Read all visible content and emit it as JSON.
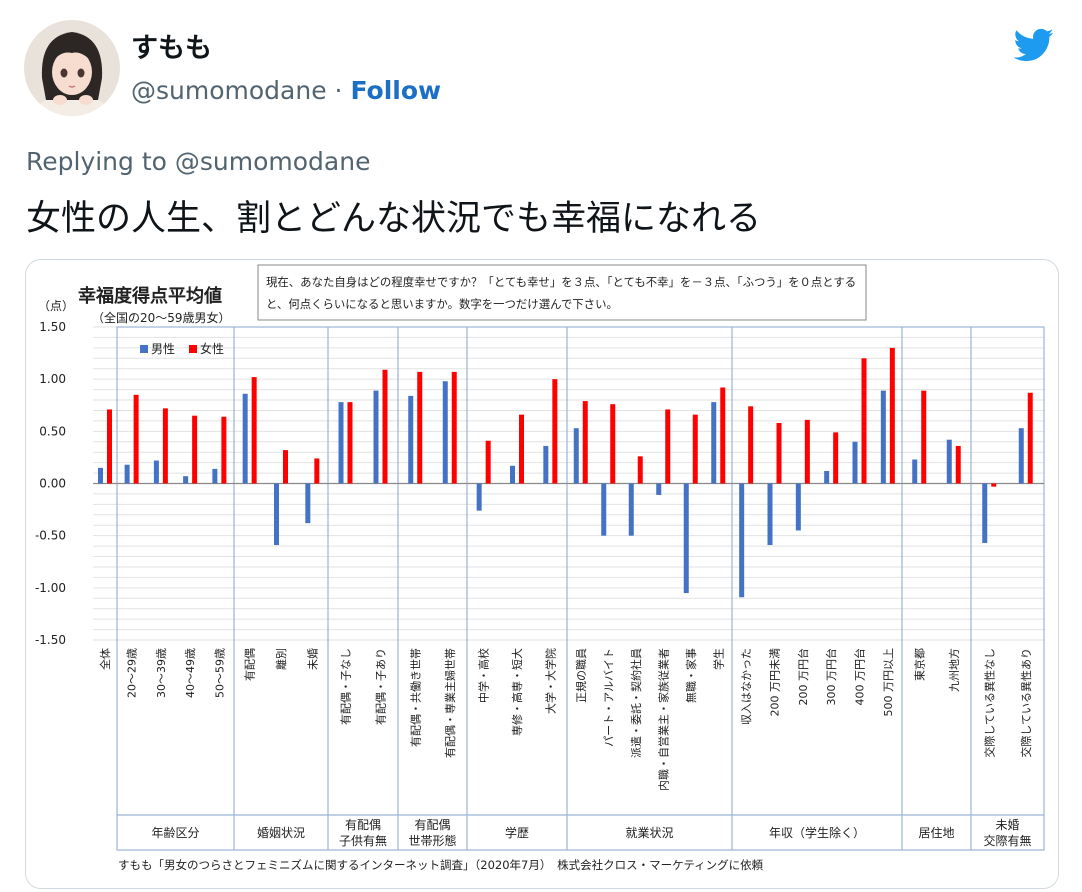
{
  "user": {
    "display_name": "すもも",
    "handle": "@sumomodane",
    "separator": "·",
    "follow_label": "Follow"
  },
  "reply": {
    "label": "Replying to @sumomodane"
  },
  "tweet": {
    "text": "女性の人生、割とどんな状況でも幸福になれる"
  },
  "colors": {
    "male": "#4472c4",
    "female": "#ff0000",
    "follow": "#1b6fc4",
    "twitter_blue": "#1d9bf0"
  },
  "chart_data": {
    "type": "bar",
    "title": "幸福度得点平均値",
    "subtitle": "（全国の20～59歳男女）",
    "ylabel": "（点）",
    "ylim": [
      -1.5,
      1.5
    ],
    "yticks": [
      "1.50",
      "1.00",
      "0.50",
      "0.00",
      "-0.50",
      "-1.00",
      "-1.50"
    ],
    "grid": true,
    "legend_position": "top-left",
    "question": [
      "現在、あなた自身はどの程度幸せですか？「とても幸せ」を３点、「とても不幸」を－３点、「ふつう」を０点とする",
      "と、何点くらいになると思いますか。数字を一つだけ選んで下さい。"
    ],
    "series": [
      {
        "name": "男性",
        "values": [
          0.15,
          0.18,
          0.22,
          0.07,
          0.14,
          0.86,
          -0.59,
          -0.38,
          0.78,
          0.89,
          0.84,
          0.98,
          -0.26,
          0.17,
          0.36,
          0.53,
          -0.5,
          -0.5,
          -0.11,
          -1.05,
          0.78,
          -1.09,
          -0.59,
          -0.45,
          0.12,
          0.4,
          0.89,
          0.23,
          0.42,
          -0.57,
          0.53
        ]
      },
      {
        "name": "女性",
        "values": [
          0.71,
          0.85,
          0.72,
          0.65,
          0.64,
          1.02,
          0.32,
          0.24,
          0.78,
          1.09,
          1.07,
          1.07,
          0.41,
          0.66,
          1.0,
          0.79,
          0.76,
          0.26,
          0.71,
          0.66,
          0.92,
          0.74,
          0.58,
          0.61,
          0.49,
          1.2,
          1.3,
          0.89,
          0.36,
          -0.03,
          0.87
        ]
      }
    ],
    "categories": [
      "全体",
      "20～29歳",
      "30～39歳",
      "40～49歳",
      "50～59歳",
      "有配偶",
      "離別",
      "未婚",
      "有配偶・子なし",
      "有配偶・子あり",
      "有配偶・共働き世帯",
      "有配偶・専業主婦世帯",
      "中学・高校",
      "専修・高専・短大",
      "大学・大学院",
      "正規の職員",
      "パート・アルバイト",
      "派遣・委託・契約社員",
      "内職・自営業主・家族従業者",
      "無職・家事",
      "学生",
      "収入はなかった",
      "200 万円未満",
      "200 万円台",
      "300 万円台",
      "400 万円台",
      "500 万円以上",
      "東京都",
      "九州地方",
      "交際している異性なし",
      "交際している異性あり"
    ],
    "groups": [
      {
        "label": [
          "年齢区分"
        ]
      },
      {
        "label": [
          "婚姻状況"
        ]
      },
      {
        "label": [
          "有配偶",
          "子供有無"
        ]
      },
      {
        "label": [
          "有配偶",
          "世帯形態"
        ]
      },
      {
        "label": [
          "学歴"
        ]
      },
      {
        "label": [
          "就業状況"
        ]
      },
      {
        "label": [
          "年収（学生除く）"
        ]
      },
      {
        "label": [
          "居住地"
        ]
      },
      {
        "label": [
          "未婚",
          "交際有無"
        ]
      }
    ],
    "source": "すもも「男女のつらさとフェミニズムに関するインターネット調査」（2020年7月）　株式会社クロス・マーケティングに依頼"
  }
}
